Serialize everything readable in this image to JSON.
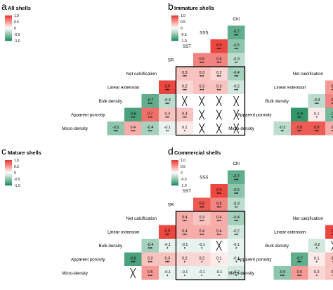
{
  "colors": {
    "positive": "#e8322b",
    "negative": "#1d8a5a",
    "neutral": "#ffffff",
    "box": "#000000"
  },
  "legend": {
    "ticks": [
      "1.0",
      "0.5",
      "0",
      "-0.5",
      "-1.0"
    ]
  },
  "variables": [
    "Chl",
    "SSS",
    "SST",
    "SR",
    "Net calcification",
    "Linear extension",
    "Bulk density",
    "Apparent porosity",
    "Micro-density"
  ],
  "chart_data": [
    {
      "type": "heatmap",
      "panel": "a",
      "title": "All shells",
      "variables": [
        "Chl",
        "SSS",
        "SST",
        "SR",
        "Net calcification",
        "Linear extension",
        "Bulk density",
        "Apparent porosity",
        "Micro-density"
      ],
      "cells": [
        {
          "row": 1,
          "col": 0,
          "v": -0.7,
          "s": "***"
        },
        {
          "row": 2,
          "col": 0,
          "v": -0.5,
          "s": "***"
        },
        {
          "row": 2,
          "col": 1,
          "v": 0.9,
          "s": "***"
        },
        {
          "row": 3,
          "col": 0,
          "v": -0.3,
          "s": "**"
        },
        {
          "row": 3,
          "col": 1,
          "v": 0.6,
          "s": "***"
        },
        {
          "row": 3,
          "col": 2,
          "v": 0.6,
          "s": "***"
        },
        {
          "row": 4,
          "col": 0,
          "v": -0.4,
          "s": "***"
        },
        {
          "row": 4,
          "col": 1,
          "v": 0.2,
          "s": "***"
        },
        {
          "row": 4,
          "col": 2,
          "v": 0.3,
          "s": "***"
        },
        {
          "row": 4,
          "col": 3,
          "v": 0.3,
          "s": "***"
        },
        {
          "row": 5,
          "col": 0,
          "v": -0.2,
          "s": "***"
        },
        {
          "row": 5,
          "col": 1,
          "v": 0.3,
          "s": "***"
        },
        {
          "row": 5,
          "col": 2,
          "v": 0.3,
          "s": "***"
        },
        {
          "row": 5,
          "col": 3,
          "v": 0.2,
          "s": "***"
        },
        {
          "row": 5,
          "col": 4,
          "v": 0.9,
          "s": "***"
        },
        {
          "row": 6,
          "col": 0,
          "x": true
        },
        {
          "row": 6,
          "col": 1,
          "x": true
        },
        {
          "row": 6,
          "col": 2,
          "x": true
        },
        {
          "row": 6,
          "col": 3,
          "x": true
        },
        {
          "row": 6,
          "col": 4,
          "v": -0.3,
          "s": "***"
        },
        {
          "row": 6,
          "col": 5,
          "v": -0.7,
          "s": "***"
        },
        {
          "row": 7,
          "col": 0,
          "x": true
        },
        {
          "row": 7,
          "col": 1,
          "x": true
        },
        {
          "row": 7,
          "col": 2,
          "x": true
        },
        {
          "row": 7,
          "col": 3,
          "v": 0.3,
          "s": "***"
        },
        {
          "row": 7,
          "col": 4,
          "v": 0.3,
          "s": "***"
        },
        {
          "row": 7,
          "col": 5,
          "v": 0.7,
          "s": "***"
        },
        {
          "row": 7,
          "col": 6,
          "v": -0.8,
          "s": "***"
        },
        {
          "row": 8,
          "col": 0,
          "x": true
        },
        {
          "row": 8,
          "col": 1,
          "x": true
        },
        {
          "row": 8,
          "col": 2,
          "x": true
        },
        {
          "row": 8,
          "col": 3,
          "v": 0.1,
          "s": "*"
        },
        {
          "row": 8,
          "col": 4,
          "v": -0.1,
          "s": "**"
        },
        {
          "row": 8,
          "col": 5,
          "v": -0.4,
          "s": "***"
        },
        {
          "row": 8,
          "col": 6,
          "v": 0.4,
          "s": "***"
        },
        {
          "row": 8,
          "col": 7,
          "v": -0.5,
          "s": "***"
        }
      ]
    },
    {
      "type": "heatmap",
      "panel": "b",
      "title": "Immature shells",
      "variables": [
        "Chl",
        "SSS",
        "SST",
        "SR",
        "Net calcification",
        "Linear extension",
        "Bulk density",
        "Apparent porosity",
        "Micro-density"
      ],
      "cells": [
        {
          "row": 1,
          "col": 0,
          "v": -0.7,
          "s": "***"
        },
        {
          "row": 2,
          "col": 0,
          "v": -0.5,
          "s": "***"
        },
        {
          "row": 2,
          "col": 1,
          "v": 0.9,
          "s": "***"
        },
        {
          "row": 3,
          "col": 0,
          "v": -0.3,
          "s": "**"
        },
        {
          "row": 3,
          "col": 1,
          "v": 0.6,
          "s": "***"
        },
        {
          "row": 3,
          "col": 2,
          "v": 0.6,
          "s": "***"
        },
        {
          "row": 4,
          "col": 0,
          "v": -0.5,
          "s": "***"
        },
        {
          "row": 4,
          "col": 1,
          "v": 0.4,
          "s": "***"
        },
        {
          "row": 4,
          "col": 2,
          "v": 0.3,
          "s": "***"
        },
        {
          "row": 4,
          "col": 3,
          "v": 0.2,
          "s": "*"
        },
        {
          "row": 5,
          "col": 0,
          "v": -0.3,
          "s": "***"
        },
        {
          "row": 5,
          "col": 1,
          "v": 0.3,
          "s": "***"
        },
        {
          "row": 5,
          "col": 2,
          "v": 0.2,
          "s": "***"
        },
        {
          "row": 5,
          "col": 3,
          "v": 0.2,
          "s": "*"
        },
        {
          "row": 5,
          "col": 4,
          "v": 0.5,
          "s": "***"
        },
        {
          "row": 6,
          "col": 0,
          "v": -0.1,
          "s": "*"
        },
        {
          "row": 6,
          "col": 1,
          "v": 0.1,
          "s": "*"
        },
        {
          "row": 6,
          "col": 2,
          "v": 0.2,
          "s": "**"
        },
        {
          "row": 6,
          "col": 3,
          "v": 0.2,
          "s": "**"
        },
        {
          "row": 6,
          "col": 4,
          "v": 0.6,
          "s": "***"
        },
        {
          "row": 6,
          "col": 5,
          "v": -0.3,
          "s": "***"
        },
        {
          "row": 7,
          "col": 0,
          "v": 0.2,
          "s": "**"
        },
        {
          "row": 7,
          "col": 1,
          "v": -0.2,
          "s": "**"
        },
        {
          "row": 7,
          "col": 2,
          "v": -0.2,
          "s": "**"
        },
        {
          "row": 7,
          "col": 3,
          "x": true
        },
        {
          "row": 7,
          "col": 4,
          "v": -0.6,
          "s": "***"
        },
        {
          "row": 7,
          "col": 5,
          "v": 0.1,
          "s": "*"
        },
        {
          "row": 7,
          "col": 6,
          "v": -0.9,
          "s": "***"
        },
        {
          "row": 8,
          "col": 0,
          "v": -0.4,
          "s": "***"
        },
        {
          "row": 8,
          "col": 1,
          "v": 0.2,
          "s": "**"
        },
        {
          "row": 8,
          "col": 2,
          "v": 0.3,
          "s": "***"
        },
        {
          "row": 8,
          "col": 3,
          "v": 0.2,
          "s": "*"
        },
        {
          "row": 8,
          "col": 4,
          "v": 0.4,
          "s": "***"
        },
        {
          "row": 8,
          "col": 5,
          "v": 0.8,
          "s": "***"
        },
        {
          "row": 8,
          "col": 6,
          "v": 0.8,
          "s": "***"
        },
        {
          "row": 8,
          "col": 7,
          "v": -0.3,
          "s": "**"
        }
      ]
    },
    {
      "type": "heatmap",
      "panel": "c",
      "title": "Mature shells",
      "variables": [
        "Chl",
        "SSS",
        "SST",
        "SR",
        "Net calcification",
        "Linear extension",
        "Bulk density",
        "Apparent porosity",
        "Micro-density"
      ],
      "cells": [
        {
          "row": 1,
          "col": 0,
          "v": -0.7,
          "s": "***"
        },
        {
          "row": 2,
          "col": 0,
          "v": -0.5,
          "s": "***"
        },
        {
          "row": 2,
          "col": 1,
          "v": 0.9,
          "s": "***"
        },
        {
          "row": 3,
          "col": 0,
          "v": -0.3,
          "s": "**"
        },
        {
          "row": 3,
          "col": 1,
          "v": 0.6,
          "s": "***"
        },
        {
          "row": 3,
          "col": 2,
          "v": 0.8,
          "s": "***"
        },
        {
          "row": 4,
          "col": 0,
          "v": -0.4,
          "s": "***"
        },
        {
          "row": 4,
          "col": 1,
          "v": 0.4,
          "s": "***"
        },
        {
          "row": 4,
          "col": 2,
          "v": 0.3,
          "s": "***"
        },
        {
          "row": 4,
          "col": 3,
          "v": 0.4,
          "s": "***"
        },
        {
          "row": 5,
          "col": 0,
          "v": -0.2,
          "s": "***"
        },
        {
          "row": 5,
          "col": 1,
          "v": 0.4,
          "s": "***"
        },
        {
          "row": 5,
          "col": 2,
          "v": 0.4,
          "s": "***"
        },
        {
          "row": 5,
          "col": 3,
          "v": 0.4,
          "s": "***"
        },
        {
          "row": 5,
          "col": 4,
          "v": 0.9,
          "s": "***"
        },
        {
          "row": 6,
          "col": 0,
          "v": -0.1,
          "s": "*"
        },
        {
          "row": 6,
          "col": 1,
          "x": true
        },
        {
          "row": 6,
          "col": 2,
          "v": -0.1,
          "s": "*"
        },
        {
          "row": 6,
          "col": 3,
          "v": -0.1,
          "s": "*"
        },
        {
          "row": 6,
          "col": 4,
          "v": -0.1,
          "s": "*"
        },
        {
          "row": 6,
          "col": 5,
          "v": -0.4,
          "s": "***"
        },
        {
          "row": 7,
          "col": 0,
          "v": -0.1,
          "s": "*"
        },
        {
          "row": 7,
          "col": 1,
          "v": 0.1,
          "s": "*"
        },
        {
          "row": 7,
          "col": 2,
          "v": 0.2,
          "s": "*"
        },
        {
          "row": 7,
          "col": 3,
          "v": 0.2,
          "s": "*"
        },
        {
          "row": 7,
          "col": 4,
          "v": 0.3,
          "s": "***"
        },
        {
          "row": 7,
          "col": 5,
          "v": 0.3,
          "s": "***"
        },
        {
          "row": 7,
          "col": 6,
          "v": -0.8,
          "s": "***"
        },
        {
          "row": 8,
          "col": 0,
          "v": -0.2,
          "s": "*"
        },
        {
          "row": 8,
          "col": 1,
          "v": -0.1,
          "s": "*"
        },
        {
          "row": 8,
          "col": 2,
          "v": -0.1,
          "s": "*"
        },
        {
          "row": 8,
          "col": 3,
          "v": -0.1,
          "s": "*"
        },
        {
          "row": 8,
          "col": 4,
          "v": -0.1,
          "s": "*"
        },
        {
          "row": 8,
          "col": 5,
          "v": 0.5,
          "s": "***"
        },
        {
          "row": 8,
          "col": 6,
          "x": true
        }
      ]
    },
    {
      "type": "heatmap",
      "panel": "d",
      "title": "Commercial shells",
      "variables": [
        "Chl",
        "SSS",
        "SST",
        "SR",
        "Net calcification",
        "Linear extension",
        "Bulk density",
        "Apparent porosity",
        "Micro-density"
      ],
      "cells": [
        {
          "row": 1,
          "col": 0,
          "v": -0.7,
          "s": "***"
        },
        {
          "row": 2,
          "col": 0,
          "v": -0.5,
          "s": "***"
        },
        {
          "row": 2,
          "col": 1,
          "v": 0.9,
          "s": "***"
        },
        {
          "row": 3,
          "col": 0,
          "v": -0.3,
          "s": "**"
        },
        {
          "row": 3,
          "col": 1,
          "v": 0.6,
          "s": "***"
        },
        {
          "row": 3,
          "col": 2,
          "v": 0.6,
          "s": "***"
        },
        {
          "row": 4,
          "col": 0,
          "v": -0.5,
          "s": "***"
        },
        {
          "row": 4,
          "col": 1,
          "v": 0.5,
          "s": "***"
        },
        {
          "row": 4,
          "col": 2,
          "v": 0.5,
          "s": "***"
        },
        {
          "row": 4,
          "col": 3,
          "v": 0.5,
          "s": "***"
        },
        {
          "row": 5,
          "col": 0,
          "v": -0.5,
          "s": "***"
        },
        {
          "row": 5,
          "col": 1,
          "v": 0.5,
          "s": "***"
        },
        {
          "row": 5,
          "col": 2,
          "v": 0.5,
          "s": "***"
        },
        {
          "row": 5,
          "col": 3,
          "v": 0.4,
          "s": "***"
        },
        {
          "row": 5,
          "col": 4,
          "v": 0.9,
          "s": "***"
        },
        {
          "row": 6,
          "col": 0,
          "v": 0.2,
          "s": "*"
        },
        {
          "row": 6,
          "col": 1,
          "v": -0.2,
          "s": "*"
        },
        {
          "row": 6,
          "col": 2,
          "v": -0.2,
          "s": "*"
        },
        {
          "row": 6,
          "col": 3,
          "v": -0.2,
          "s": "**"
        },
        {
          "row": 6,
          "col": 4,
          "x": true
        },
        {
          "row": 6,
          "col": 5,
          "v": -0.2,
          "s": "*"
        },
        {
          "row": 7,
          "col": 0,
          "v": -0.2,
          "s": "*"
        },
        {
          "row": 7,
          "col": 1,
          "v": 0.2,
          "s": "*"
        },
        {
          "row": 7,
          "col": 2,
          "v": 0.2,
          "s": "*"
        },
        {
          "row": 7,
          "col": 3,
          "v": 0.2,
          "s": "*"
        },
        {
          "row": 7,
          "col": 4,
          "v": 0.3,
          "s": "**"
        },
        {
          "row": 7,
          "col": 5,
          "v": 0.1,
          "s": "*"
        },
        {
          "row": 7,
          "col": 6,
          "v": -0.7,
          "s": "***"
        },
        {
          "row": 8,
          "col": 0,
          "v": -0.2,
          "s": "*"
        },
        {
          "row": 8,
          "col": 1,
          "v": 0.2,
          "s": "*"
        },
        {
          "row": 8,
          "col": 2,
          "v": 0.2,
          "s": "*"
        },
        {
          "row": 8,
          "col": 3,
          "v": 0.3,
          "s": "**"
        },
        {
          "row": 8,
          "col": 4,
          "v": 0.3,
          "s": "**"
        },
        {
          "row": 8,
          "col": 5,
          "v": 0.2,
          "s": "*"
        },
        {
          "row": 8,
          "col": 6,
          "v": 0.5,
          "s": "***"
        },
        {
          "row": 8,
          "col": 7,
          "v": -0.5,
          "s": "***"
        }
      ]
    }
  ]
}
